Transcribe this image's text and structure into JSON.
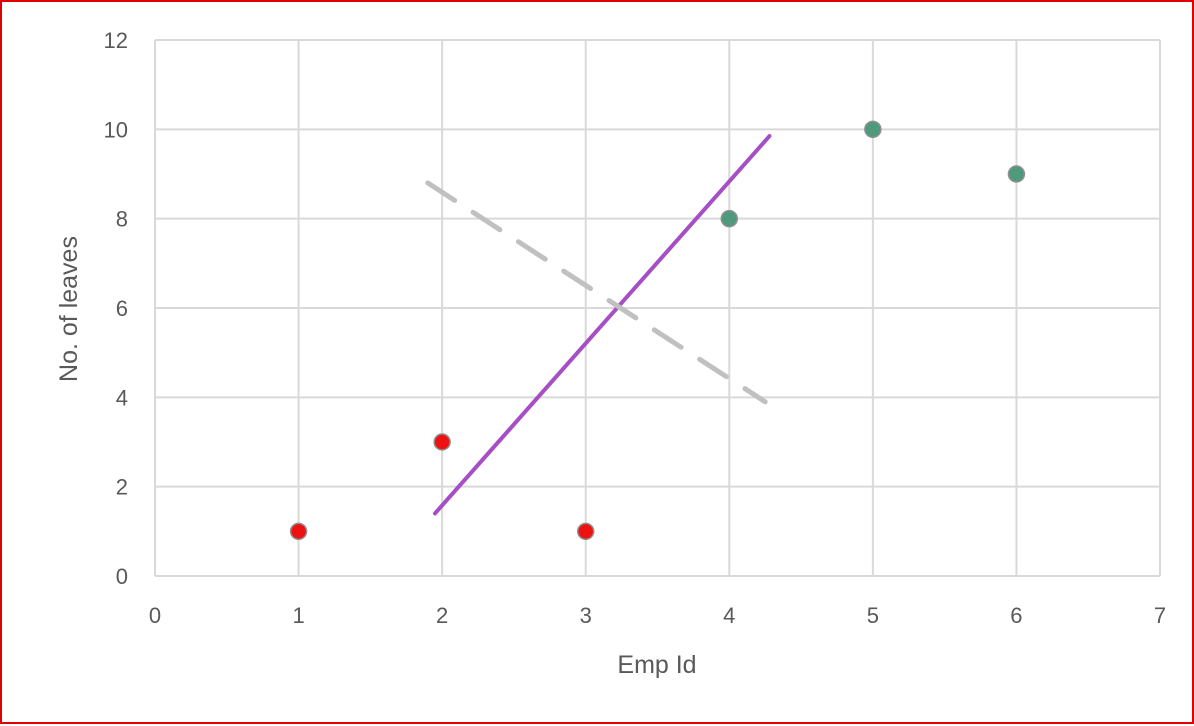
{
  "chart_data": {
    "type": "scatter",
    "title": "",
    "xlabel": "Emp Id",
    "ylabel": "No. of leaves",
    "xlim": [
      0,
      7
    ],
    "ylim": [
      0,
      12
    ],
    "x_ticks": [
      "0",
      "1",
      "2",
      "3",
      "4",
      "5",
      "6",
      "7"
    ],
    "y_ticks": [
      "0",
      "2",
      "4",
      "6",
      "8",
      "10",
      "12"
    ],
    "grid": true,
    "legend": "none",
    "series": [
      {
        "type": "scatter",
        "color": "#ee1111",
        "points": [
          {
            "x": 1,
            "y": 1
          },
          {
            "x": 2,
            "y": 3
          },
          {
            "x": 3,
            "y": 1
          }
        ]
      },
      {
        "type": "scatter",
        "color": "#4e9a7a",
        "points": [
          {
            "x": 4,
            "y": 8
          },
          {
            "x": 5,
            "y": 10
          },
          {
            "x": 6,
            "y": 9
          }
        ]
      },
      {
        "type": "line",
        "color": "#a64fc4",
        "points": [
          {
            "x": 1.95,
            "y": 1.4
          },
          {
            "x": 4.28,
            "y": 9.85
          }
        ]
      },
      {
        "type": "line",
        "style": "dashed",
        "color": "#c0c0c0",
        "points": [
          {
            "x": 1.9,
            "y": 8.8
          },
          {
            "x": 4.25,
            "y": 3.9
          }
        ]
      }
    ]
  }
}
